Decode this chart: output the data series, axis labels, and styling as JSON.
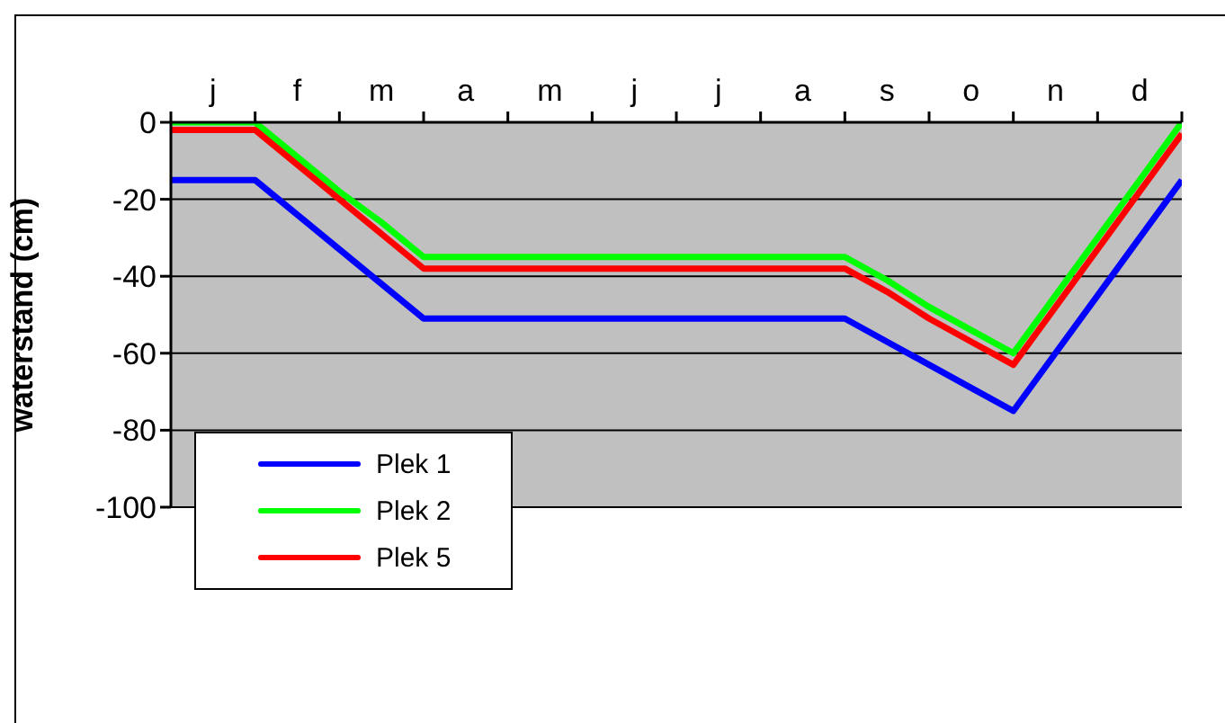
{
  "chart_data": {
    "type": "line",
    "ylabel": "waterstand (cm)",
    "categories": [
      null,
      "j",
      null,
      "f",
      null,
      "m",
      null,
      "a",
      null,
      "m",
      null,
      "j",
      null,
      "j",
      null,
      "a",
      null,
      "s",
      null,
      "o",
      null,
      "n",
      null,
      "d",
      null
    ],
    "ylim": [
      -100,
      0
    ],
    "yticks": [
      -100,
      -80,
      -60,
      -40,
      -20,
      0
    ],
    "grid": "y",
    "legend": "bottom left",
    "marker": "none",
    "line_style": "solid",
    "series": [
      {
        "name": "Plek 1",
        "color": "#0000ff",
        "values": [
          -15,
          -15,
          -15,
          -24,
          -33,
          -42,
          -51,
          -51,
          -51,
          -51,
          -51,
          -51,
          -51,
          -51,
          -51,
          -51,
          -51,
          -57,
          -63,
          -69,
          -75,
          -60,
          -45,
          -30,
          -15
        ]
      },
      {
        "name": "Plek 2",
        "color": "#00ff00",
        "values": [
          0,
          0,
          0,
          -9,
          -18,
          -26,
          -35,
          -35,
          -35,
          -35,
          -35,
          -35,
          -35,
          -35,
          -35,
          -35,
          -35,
          -41,
          -48,
          -54,
          -60,
          -45,
          -30,
          -15,
          0
        ]
      },
      {
        "name": "Plek 5",
        "color": "#ff0000",
        "values": [
          -2,
          -2,
          -2,
          -11,
          -20,
          -29,
          -38,
          -38,
          -38,
          -38,
          -38,
          -38,
          -38,
          -38,
          -38,
          -38,
          -38,
          -44,
          -51,
          -57,
          -63,
          -48,
          -33,
          -18,
          -3
        ]
      }
    ]
  }
}
